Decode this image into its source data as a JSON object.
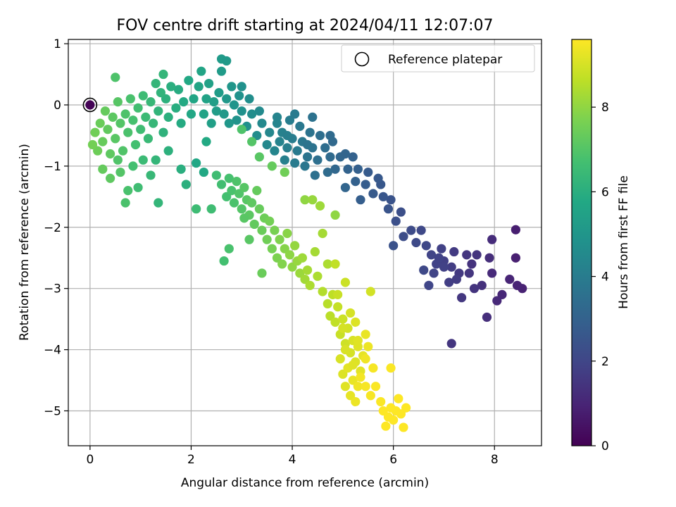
{
  "chart_data": {
    "type": "scatter",
    "title": "FOV centre drift starting at 2024/04/11 12:07:07",
    "xlabel": "Angular distance from reference (arcmin)",
    "ylabel": "Rotation from reference (arcmin)",
    "xlim": [
      -0.43,
      8.93
    ],
    "ylim": [
      -5.57,
      1.07
    ],
    "xticks": [
      0,
      2,
      4,
      6,
      8
    ],
    "yticks": [
      1,
      0,
      -1,
      -2,
      -3,
      -4,
      -5
    ],
    "xtick_labels": [
      "0",
      "2",
      "4",
      "6",
      "8"
    ],
    "ytick_labels": [
      "1",
      "0",
      "−1",
      "−2",
      "−3",
      "−4",
      "−5"
    ],
    "grid": true,
    "legend": {
      "placement": "top-right",
      "entries": [
        "Reference platepar"
      ]
    },
    "colorbar": {
      "label": "Hours from first FF file",
      "colormap": "viridis",
      "range": [
        0,
        9.6
      ],
      "ticks": [
        0,
        2,
        4,
        6,
        8
      ],
      "tick_labels": [
        "0",
        "2",
        "4",
        "6",
        "8"
      ]
    },
    "reference_point": {
      "x": 0,
      "y": 0,
      "hours": 0.05
    },
    "points": [
      [
        8.42,
        -2.04,
        0.8
      ],
      [
        8.42,
        -2.5,
        0.85
      ],
      [
        8.55,
        -3.0,
        0.9
      ],
      [
        8.45,
        -2.95,
        0.95
      ],
      [
        8.3,
        -2.85,
        1.0
      ],
      [
        8.15,
        -3.1,
        1.05
      ],
      [
        8.05,
        -3.2,
        1.1
      ],
      [
        7.95,
        -2.75,
        1.15
      ],
      [
        7.95,
        -2.2,
        1.2
      ],
      [
        7.9,
        -2.5,
        1.25
      ],
      [
        7.85,
        -3.47,
        1.3
      ],
      [
        7.75,
        -2.95,
        1.35
      ],
      [
        7.55,
        -2.6,
        1.4
      ],
      [
        7.6,
        -3.0,
        1.45
      ],
      [
        7.45,
        -2.45,
        1.5
      ],
      [
        7.35,
        -3.15,
        1.55
      ],
      [
        7.3,
        -2.75,
        1.6
      ],
      [
        7.2,
        -2.4,
        1.65
      ],
      [
        7.15,
        -2.65,
        1.7
      ],
      [
        7.1,
        -2.9,
        1.75
      ],
      [
        7.0,
        -2.55,
        1.8
      ],
      [
        6.95,
        -2.35,
        1.85
      ],
      [
        6.85,
        -2.6,
        1.9
      ],
      [
        6.75,
        -2.45,
        1.95
      ],
      [
        6.7,
        -2.95,
        2.0
      ],
      [
        6.65,
        -2.3,
        2.05
      ],
      [
        6.6,
        -2.7,
        2.1
      ],
      [
        7.15,
        -3.9,
        1.5
      ],
      [
        6.9,
        -2.5,
        1.9
      ],
      [
        7.25,
        -2.85,
        1.7
      ],
      [
        7.5,
        -2.75,
        1.5
      ],
      [
        7.65,
        -2.45,
        1.45
      ],
      [
        7.0,
        -2.65,
        1.85
      ],
      [
        6.8,
        -2.75,
        1.95
      ],
      [
        6.55,
        -2.05,
        2.1
      ],
      [
        6.45,
        -2.25,
        2.15
      ],
      [
        6.35,
        -2.05,
        2.2
      ],
      [
        6.2,
        -2.15,
        2.25
      ],
      [
        6.15,
        -1.75,
        2.3
      ],
      [
        6.05,
        -1.9,
        2.35
      ],
      [
        6.0,
        -2.3,
        2.4
      ],
      [
        5.95,
        -1.55,
        2.45
      ],
      [
        5.9,
        -1.7,
        2.5
      ],
      [
        5.8,
        -1.5,
        2.55
      ],
      [
        5.75,
        -1.3,
        2.6
      ],
      [
        5.7,
        -1.2,
        2.65
      ],
      [
        5.6,
        -1.45,
        2.7
      ],
      [
        5.5,
        -1.1,
        2.75
      ],
      [
        5.45,
        -1.3,
        2.8
      ],
      [
        5.35,
        -1.55,
        2.85
      ],
      [
        5.3,
        -1.05,
        2.9
      ],
      [
        5.25,
        -1.25,
        2.95
      ],
      [
        5.2,
        -0.85,
        3.0
      ],
      [
        5.1,
        -1.05,
        3.05
      ],
      [
        5.05,
        -1.35,
        3.1
      ],
      [
        4.95,
        -0.85,
        3.15
      ],
      [
        4.85,
        -1.05,
        3.2
      ],
      [
        4.8,
        -0.6,
        3.25
      ],
      [
        4.75,
        -0.85,
        3.3
      ],
      [
        4.7,
        -1.1,
        3.35
      ],
      [
        4.65,
        -0.7,
        3.4
      ],
      [
        4.55,
        -0.5,
        3.45
      ],
      [
        4.5,
        -0.9,
        3.5
      ],
      [
        4.45,
        -1.15,
        3.55
      ],
      [
        4.4,
        -0.7,
        3.6
      ],
      [
        4.35,
        -0.45,
        3.65
      ],
      [
        4.3,
        -0.85,
        3.7
      ],
      [
        4.25,
        -1.0,
        3.75
      ],
      [
        4.2,
        -0.6,
        3.8
      ],
      [
        4.15,
        -0.35,
        3.85
      ],
      [
        4.1,
        -0.75,
        3.9
      ],
      [
        4.05,
        -0.95,
        3.95
      ],
      [
        4.0,
        -0.55,
        4.0
      ],
      [
        3.95,
        -0.25,
        4.05
      ],
      [
        3.9,
        -0.7,
        4.1
      ],
      [
        3.85,
        -0.9,
        4.15
      ],
      [
        3.8,
        -0.45,
        4.2
      ],
      [
        3.75,
        -0.6,
        4.25
      ],
      [
        3.7,
        -0.3,
        4.3
      ],
      [
        3.65,
        -0.75,
        4.35
      ],
      [
        3.55,
        -0.45,
        4.4
      ],
      [
        3.5,
        -0.65,
        4.45
      ],
      [
        3.4,
        -0.3,
        4.5
      ],
      [
        3.35,
        -0.1,
        4.55
      ],
      [
        3.3,
        -0.5,
        4.6
      ],
      [
        3.2,
        -0.15,
        4.65
      ],
      [
        3.15,
        0.1,
        4.7
      ],
      [
        3.1,
        -0.35,
        4.75
      ],
      [
        3.0,
        -0.1,
        4.8
      ],
      [
        2.95,
        0.15,
        4.85
      ],
      [
        2.9,
        -0.25,
        4.9
      ],
      [
        2.85,
        0.0,
        4.95
      ],
      [
        2.8,
        0.3,
        5.0
      ],
      [
        2.75,
        -0.3,
        5.05
      ],
      [
        2.7,
        0.1,
        5.1
      ],
      [
        2.65,
        -0.15,
        5.15
      ],
      [
        2.6,
        0.55,
        5.2
      ],
      [
        2.55,
        0.2,
        5.25
      ],
      [
        2.5,
        -0.1,
        5.3
      ],
      [
        2.45,
        0.05,
        5.35
      ],
      [
        2.4,
        -0.3,
        5.4
      ],
      [
        2.35,
        0.35,
        5.45
      ],
      [
        2.3,
        0.1,
        5.5
      ],
      [
        2.25,
        -0.15,
        5.55
      ],
      [
        2.2,
        0.55,
        5.6
      ],
      [
        2.6,
        0.75,
        5.2
      ],
      [
        2.7,
        0.72,
        5.15
      ],
      [
        3.0,
        0.3,
        4.8
      ],
      [
        4.05,
        -0.15,
        3.95
      ],
      [
        4.4,
        -0.2,
        3.6
      ],
      [
        4.75,
        -0.5,
        3.3
      ],
      [
        5.05,
        -0.8,
        3.1
      ],
      [
        3.7,
        -0.2,
        4.3
      ],
      [
        3.9,
        -0.5,
        4.1
      ],
      [
        4.3,
        -0.65,
        3.7
      ],
      [
        2.15,
        0.3,
        5.6
      ],
      [
        2.05,
        0.1,
        5.65
      ],
      [
        2.0,
        -0.15,
        5.7
      ],
      [
        1.95,
        0.4,
        5.75
      ],
      [
        1.85,
        0.05,
        5.8
      ],
      [
        1.8,
        -0.3,
        5.85
      ],
      [
        1.75,
        0.25,
        5.9
      ],
      [
        1.7,
        -0.05,
        5.95
      ],
      [
        1.6,
        0.3,
        6.0
      ],
      [
        1.55,
        -0.2,
        6.05
      ],
      [
        1.5,
        0.1,
        6.1
      ],
      [
        1.45,
        -0.45,
        6.15
      ],
      [
        1.4,
        0.2,
        6.2
      ],
      [
        1.35,
        -0.1,
        6.25
      ],
      [
        1.3,
        0.35,
        6.3
      ],
      [
        1.25,
        -0.3,
        6.35
      ],
      [
        1.2,
        0.05,
        6.4
      ],
      [
        1.15,
        -0.55,
        6.45
      ],
      [
        1.1,
        -0.2,
        6.5
      ],
      [
        1.05,
        0.15,
        6.55
      ],
      [
        1.0,
        -0.4,
        6.6
      ],
      [
        0.95,
        -0.05,
        6.65
      ],
      [
        0.9,
        -0.65,
        6.7
      ],
      [
        0.85,
        -0.25,
        6.75
      ],
      [
        0.8,
        0.1,
        6.8
      ],
      [
        0.75,
        -0.45,
        6.85
      ],
      [
        0.7,
        -0.15,
        6.9
      ],
      [
        0.65,
        -0.75,
        6.95
      ],
      [
        0.6,
        -0.3,
        7.0
      ],
      [
        0.55,
        0.05,
        7.05
      ],
      [
        0.5,
        -0.55,
        7.1
      ],
      [
        0.45,
        -0.2,
        7.15
      ],
      [
        0.4,
        -0.8,
        7.2
      ],
      [
        0.35,
        -0.4,
        7.25
      ],
      [
        0.3,
        -0.1,
        7.3
      ],
      [
        0.25,
        -0.6,
        7.35
      ],
      [
        0.2,
        -0.3,
        7.4
      ],
      [
        0.15,
        -0.75,
        7.45
      ],
      [
        0.1,
        -0.45,
        7.5
      ],
      [
        0.05,
        -0.65,
        7.55
      ],
      [
        0.5,
        0.45,
        6.9
      ],
      [
        1.45,
        0.5,
        6.3
      ],
      [
        0.75,
        -1.4,
        6.8
      ],
      [
        0.7,
        -1.6,
        6.85
      ],
      [
        1.35,
        -1.6,
        6.3
      ],
      [
        0.95,
        -1.35,
        6.6
      ],
      [
        0.4,
        -1.2,
        7.2
      ],
      [
        0.25,
        -1.05,
        7.3
      ],
      [
        0.6,
        -1.1,
        7.0
      ],
      [
        1.2,
        -1.15,
        6.4
      ],
      [
        1.8,
        -1.05,
        6.0
      ],
      [
        1.9,
        -1.3,
        6.05
      ],
      [
        2.3,
        -0.6,
        5.8
      ],
      [
        2.1,
        -0.95,
        5.7
      ],
      [
        2.25,
        -1.1,
        5.75
      ],
      [
        1.55,
        -0.75,
        6.1
      ],
      [
        1.05,
        -0.9,
        6.5
      ],
      [
        0.85,
        -1.0,
        6.7
      ],
      [
        0.55,
        -0.9,
        6.95
      ],
      [
        1.3,
        -0.9,
        6.3
      ],
      [
        2.5,
        -1.15,
        6.6
      ],
      [
        2.6,
        -1.3,
        6.65
      ],
      [
        2.7,
        -1.5,
        6.7
      ],
      [
        2.75,
        -1.2,
        6.75
      ],
      [
        2.8,
        -1.4,
        6.8
      ],
      [
        2.85,
        -1.6,
        6.85
      ],
      [
        2.9,
        -1.25,
        6.9
      ],
      [
        2.95,
        -1.45,
        6.95
      ],
      [
        3.0,
        -1.7,
        7.0
      ],
      [
        3.05,
        -1.35,
        7.05
      ],
      [
        3.1,
        -1.55,
        7.1
      ],
      [
        3.15,
        -1.8,
        7.15
      ],
      [
        3.2,
        -1.6,
        7.2
      ],
      [
        3.25,
        -1.95,
        7.25
      ],
      [
        3.3,
        -1.4,
        7.3
      ],
      [
        3.35,
        -1.7,
        7.35
      ],
      [
        3.4,
        -2.05,
        7.4
      ],
      [
        3.45,
        -1.85,
        7.45
      ],
      [
        3.5,
        -2.2,
        7.5
      ],
      [
        3.55,
        -1.9,
        7.55
      ],
      [
        3.6,
        -2.35,
        7.6
      ],
      [
        3.65,
        -2.05,
        7.65
      ],
      [
        3.7,
        -2.5,
        7.7
      ],
      [
        3.75,
        -2.2,
        7.75
      ],
      [
        3.8,
        -2.6,
        7.8
      ],
      [
        3.85,
        -2.35,
        7.85
      ],
      [
        3.9,
        -2.1,
        7.9
      ],
      [
        3.95,
        -2.45,
        7.95
      ],
      [
        4.0,
        -2.65,
        8.0
      ],
      [
        4.05,
        -2.3,
        8.05
      ],
      [
        4.1,
        -2.55,
        8.1
      ],
      [
        4.15,
        -2.75,
        8.15
      ],
      [
        4.2,
        -2.5,
        8.2
      ],
      [
        4.25,
        -2.85,
        8.25
      ],
      [
        4.3,
        -2.7,
        8.3
      ],
      [
        2.65,
        -2.55,
        6.7
      ],
      [
        2.75,
        -2.35,
        6.8
      ],
      [
        3.15,
        -2.2,
        7.1
      ],
      [
        3.4,
        -2.75,
        7.4
      ],
      [
        3.0,
        -0.4,
        6.9
      ],
      [
        3.2,
        -0.6,
        7.0
      ],
      [
        3.35,
        -0.85,
        7.1
      ],
      [
        3.6,
        -1.0,
        7.3
      ],
      [
        3.85,
        -1.1,
        7.5
      ],
      [
        2.4,
        -1.7,
        6.6
      ],
      [
        2.1,
        -1.7,
        6.55
      ],
      [
        3.05,
        -1.85,
        7.1
      ],
      [
        4.25,
        -1.55,
        8.0
      ],
      [
        4.4,
        -1.55,
        8.1
      ],
      [
        4.55,
        -1.65,
        8.2
      ],
      [
        4.6,
        -2.1,
        8.3
      ],
      [
        4.45,
        -2.4,
        8.3
      ],
      [
        4.7,
        -2.6,
        8.4
      ],
      [
        4.85,
        -1.8,
        8.0
      ],
      [
        4.35,
        -2.95,
        8.4
      ],
      [
        4.5,
        -2.8,
        8.4
      ],
      [
        4.6,
        -3.05,
        8.5
      ],
      [
        4.7,
        -3.25,
        8.55
      ],
      [
        4.75,
        -3.45,
        8.6
      ],
      [
        4.8,
        -3.1,
        8.65
      ],
      [
        4.85,
        -3.55,
        8.7
      ],
      [
        4.9,
        -3.3,
        8.75
      ],
      [
        4.95,
        -3.75,
        8.8
      ],
      [
        5.0,
        -3.5,
        8.85
      ],
      [
        5.05,
        -3.9,
        8.9
      ],
      [
        5.1,
        -3.65,
        8.95
      ],
      [
        5.15,
        -4.05,
        9.0
      ],
      [
        5.2,
        -3.85,
        9.05
      ],
      [
        5.25,
        -4.2,
        9.1
      ],
      [
        5.3,
        -3.95,
        9.15
      ],
      [
        5.35,
        -4.35,
        9.2
      ],
      [
        5.4,
        -4.1,
        9.25
      ],
      [
        5.45,
        -3.75,
        9.3
      ],
      [
        5.5,
        -3.95,
        9.35
      ],
      [
        5.55,
        -3.05,
        8.95
      ],
      [
        4.85,
        -2.6,
        8.7
      ],
      [
        5.05,
        -2.9,
        8.85
      ],
      [
        5.15,
        -3.4,
        9.0
      ],
      [
        4.95,
        -4.15,
        9.05
      ],
      [
        5.0,
        -4.4,
        9.1
      ],
      [
        5.05,
        -4.6,
        9.15
      ],
      [
        5.1,
        -4.3,
        9.2
      ],
      [
        5.15,
        -4.75,
        9.25
      ],
      [
        5.2,
        -4.5,
        9.3
      ],
      [
        5.25,
        -4.85,
        9.35
      ],
      [
        5.3,
        -4.6,
        9.4
      ],
      [
        5.35,
        -4.45,
        9.45
      ],
      [
        5.45,
        -4.6,
        9.5
      ],
      [
        5.55,
        -4.75,
        9.5
      ],
      [
        5.65,
        -4.6,
        9.55
      ],
      [
        5.75,
        -4.85,
        9.55
      ],
      [
        5.8,
        -5.0,
        9.6
      ],
      [
        5.85,
        -5.25,
        9.6
      ],
      [
        5.9,
        -5.1,
        9.6
      ],
      [
        5.95,
        -4.95,
        9.6
      ],
      [
        6.0,
        -5.15,
        9.6
      ],
      [
        6.05,
        -5.0,
        9.6
      ],
      [
        6.1,
        -4.8,
        9.6
      ],
      [
        6.15,
        -5.05,
        9.6
      ],
      [
        6.2,
        -5.27,
        9.6
      ],
      [
        6.25,
        -4.95,
        9.6
      ],
      [
        5.95,
        -4.3,
        9.55
      ],
      [
        5.6,
        -4.3,
        9.5
      ],
      [
        5.45,
        -4.15,
        9.4
      ],
      [
        5.25,
        -3.55,
        9.1
      ],
      [
        5.3,
        -3.85,
        9.15
      ],
      [
        5.0,
        -3.65,
        9.0
      ],
      [
        4.9,
        -3.1,
        8.8
      ],
      [
        5.05,
        -4.0,
        9.05
      ],
      [
        5.2,
        -4.25,
        9.15
      ]
    ]
  }
}
